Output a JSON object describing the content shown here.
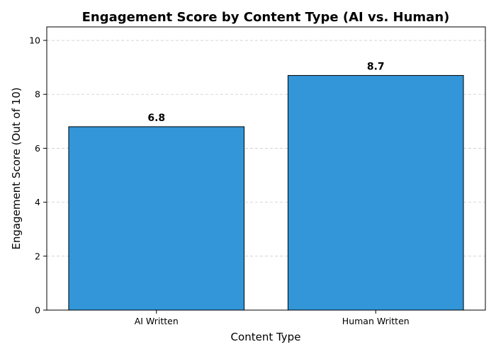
{
  "chart_data": {
    "type": "bar",
    "title": "Engagement Score by Content Type (AI vs. Human)",
    "xlabel": "Content Type",
    "ylabel": "Engagement Score (Out of 10)",
    "categories": [
      "AI Written",
      "Human Written"
    ],
    "values": [
      6.8,
      8.7
    ],
    "data_labels": [
      "6.8",
      "8.7"
    ],
    "ylim": [
      0,
      10.5
    ],
    "yticks": [
      0,
      2,
      4,
      6,
      8,
      10
    ],
    "grid": true,
    "colors": {
      "bar": "#3296d8",
      "edge": "#000000"
    }
  }
}
